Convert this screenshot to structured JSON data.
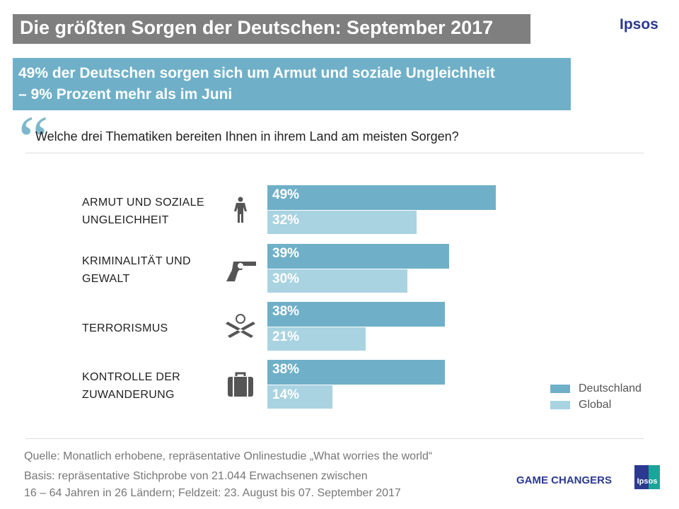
{
  "header": {
    "title": "Die größten Sorgen der Deutschen: September 2017",
    "logo": "Ipsos"
  },
  "headline": {
    "line1": "49% der Deutschen sorgen sich um Armut und soziale Ungleichheit",
    "line2": "– 9% Prozent mehr als im Juni"
  },
  "question": "Welche drei Thematiken bereiten Ihnen in ihrem Land am meisten Sorgen?",
  "chart_data": {
    "type": "bar",
    "orientation": "horizontal",
    "categories": [
      [
        "ARMUT UND SOZIALE",
        "UNGLEICHHEIT"
      ],
      [
        "KRIMINALITÄT UND",
        "GEWALT"
      ],
      [
        "TERRORISMUS"
      ],
      [
        "KONTROLLE DER",
        "ZUWANDERUNG"
      ]
    ],
    "category_icons": [
      "person-icon",
      "revolver-icon",
      "terrorist-rifles-icon",
      "suitcase-icon"
    ],
    "series": [
      {
        "name": "Deutschland",
        "values": [
          49,
          39,
          38,
          38
        ],
        "labels": [
          "49%",
          "39%",
          "38%",
          "38%"
        ],
        "color": "#6fb0c8"
      },
      {
        "name": "Global",
        "values": [
          32,
          30,
          21,
          14
        ],
        "labels": [
          "32%",
          "30%",
          "21%",
          "14%"
        ],
        "color": "#a9d3e1"
      }
    ],
    "legend_position": "bottom-right",
    "grid": false
  },
  "footer": {
    "source": "Quelle: Monatlich erhobene, repräsentative Onlinestudie „What worries the world“",
    "basis1": "Basis: repräsentative Stichprobe von 21.044 Erwachsenen zwischen",
    "basis2": "16 – 64 Jahren in 26 Ländern; Feldzeit: 23. August bis 07. September 2017",
    "tagline": "GAME CHANGERS",
    "logo": "Ipsos"
  }
}
